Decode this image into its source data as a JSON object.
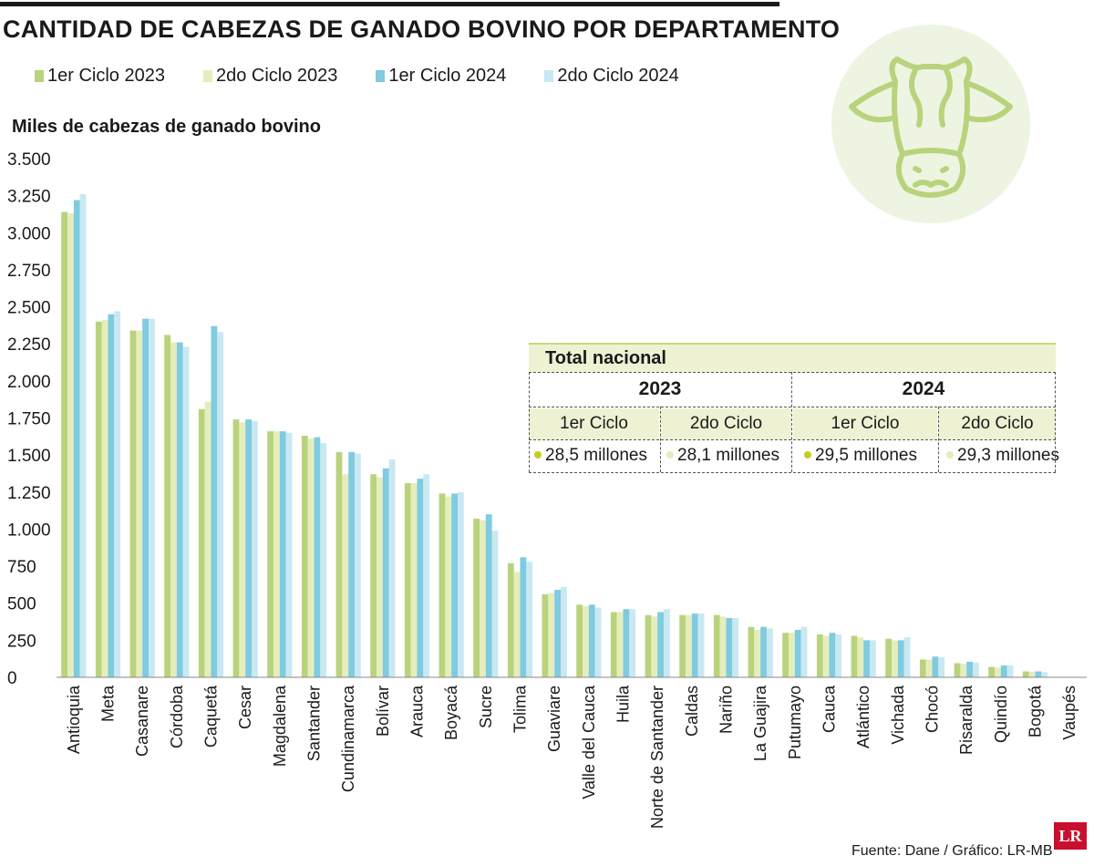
{
  "title": "CANTIDAD DE CABEZAS DE GANADO BOVINO POR DEPARTAMENTO",
  "colors": {
    "s1": "#b9d37c",
    "s2": "#e6edbc",
    "s3": "#7fcbe0",
    "s4": "#c9e8f2",
    "dot1": "#c3cf1f",
    "dot2": "#e6edbc"
  },
  "legend": [
    "1er Ciclo 2023",
    "2do Ciclo 2023",
    "1er Ciclo 2024",
    "2do Ciclo 2024"
  ],
  "total_table": {
    "header": "Total nacional",
    "years": [
      "2023",
      "2024"
    ],
    "cycles": [
      "1er Ciclo",
      "2do Ciclo",
      "1er Ciclo",
      "2do Ciclo"
    ],
    "values": [
      "28,5 millones",
      "28,1 millones",
      "29,5 millones",
      "29,3 millones"
    ]
  },
  "source": "Fuente: Dane / Gráfico: LR-MB",
  "logo": "LR",
  "icon": "cow-icon",
  "chart_data": {
    "type": "bar",
    "title": "CANTIDAD DE CABEZAS DE GANADO BOVINO POR DEPARTAMENTO",
    "xlabel": "",
    "ylabel": "Miles de cabezas de ganado bovino",
    "ylim": [
      0,
      3500
    ],
    "yticks": [
      0,
      250,
      500,
      750,
      1000,
      1250,
      1500,
      1750,
      2000,
      2250,
      2500,
      2750,
      3000,
      3250,
      3500
    ],
    "ytick_labels": [
      "0",
      "250",
      "500",
      "750",
      "1.000",
      "1.250",
      "1.500",
      "1.750",
      "2.000",
      "2.250",
      "2.500",
      "2.750",
      "3.000",
      "3.250",
      "3.500"
    ],
    "grid": false,
    "legend_position": "top-left",
    "categories": [
      "Antioquia",
      "Meta",
      "Casanare",
      "Córdoba",
      "Caquetá",
      "Cesar",
      "Magdalena",
      "Santander",
      "Cundinamarca",
      "Bolívar",
      "Arauca",
      "Boyacá",
      "Sucre",
      "Tolima",
      "Guaviare",
      "Valle del Cauca",
      "Huila",
      "Norte de Santander",
      "Caldas",
      "Nariño",
      "La Guajira",
      "Putumayo",
      "Cauca",
      "Atlántico",
      "Vichada",
      "Chocó",
      "Risaralda",
      "Quindío",
      "Bogotá",
      "Vaupés"
    ],
    "series": [
      {
        "name": "1er Ciclo 2023",
        "values": [
          3140,
          2400,
          2340,
          2310,
          1810,
          1740,
          1660,
          1630,
          1520,
          1370,
          1310,
          1240,
          1070,
          770,
          560,
          490,
          440,
          420,
          420,
          420,
          340,
          300,
          290,
          280,
          260,
          120,
          95,
          70,
          40,
          2
        ]
      },
      {
        "name": "2do Ciclo 2023",
        "values": [
          3130,
          2410,
          2340,
          2260,
          1860,
          1720,
          1660,
          1610,
          1370,
          1350,
          1310,
          1220,
          1060,
          710,
          570,
          480,
          440,
          410,
          420,
          410,
          320,
          300,
          280,
          270,
          250,
          120,
          90,
          65,
          38,
          2
        ]
      },
      {
        "name": "1er Ciclo 2024",
        "values": [
          3220,
          2450,
          2420,
          2260,
          2370,
          1740,
          1660,
          1620,
          1520,
          1410,
          1340,
          1240,
          1100,
          810,
          590,
          490,
          460,
          440,
          430,
          400,
          340,
          320,
          300,
          250,
          250,
          140,
          105,
          80,
          40,
          2
        ]
      },
      {
        "name": "2do Ciclo 2024",
        "values": [
          3260,
          2470,
          2420,
          2230,
          2330,
          1730,
          1650,
          1580,
          1510,
          1470,
          1370,
          1250,
          990,
          780,
          610,
          470,
          460,
          460,
          430,
          400,
          330,
          340,
          290,
          250,
          270,
          135,
          100,
          80,
          35,
          2
        ]
      }
    ]
  }
}
